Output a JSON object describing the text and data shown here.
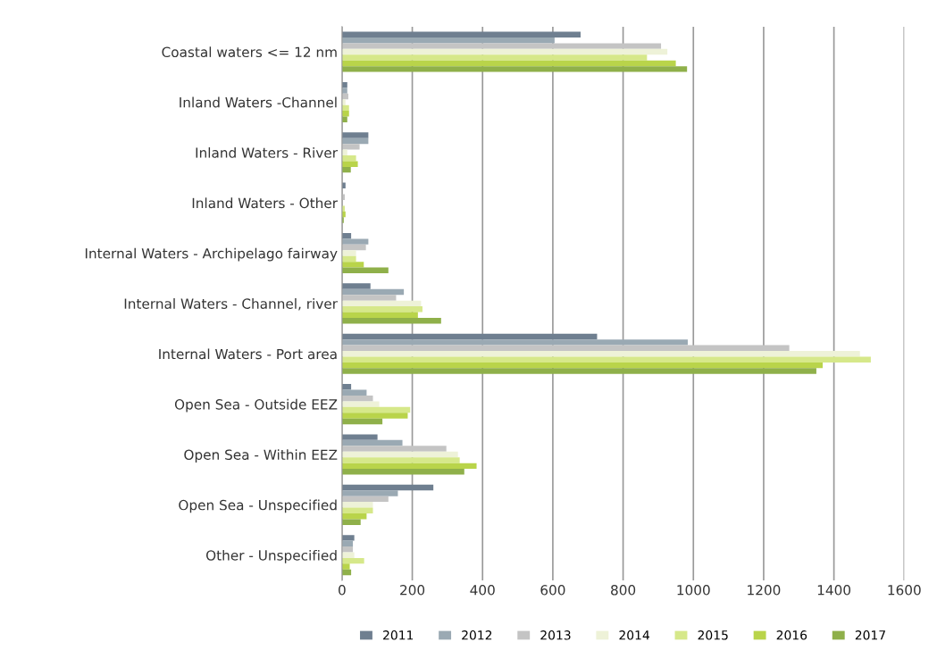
{
  "chart_data": {
    "type": "bar",
    "orientation": "horizontal",
    "categories": [
      "Coastal waters <= 12 nm",
      "Inland Waters -Channel",
      "Inland Waters - River",
      "Inland Waters - Other",
      "Internal Waters - Archipelago fairway",
      "Internal Waters - Channel, river",
      "Internal Waters - Port area",
      "Open Sea - Outside EEZ",
      "Open Sea - Within EEZ",
      "Open Sea - Unspecified",
      "Other - Unspecified"
    ],
    "series": [
      {
        "name": "2011",
        "color": "#6f7f90",
        "values": [
          679,
          15,
          75,
          10,
          26,
          81,
          726,
          26,
          101,
          260,
          35
        ]
      },
      {
        "name": "2012",
        "color": "#9aa9b3",
        "values": [
          605,
          15,
          75,
          null,
          75,
          176,
          984,
          70,
          172,
          159,
          31
        ]
      },
      {
        "name": "2013",
        "color": "#c4c4c4",
        "values": [
          908,
          18,
          50,
          8,
          68,
          154,
          1273,
          88,
          297,
          132,
          31
        ]
      },
      {
        "name": "2014",
        "color": "#eef2d8",
        "values": [
          926,
          10,
          15,
          null,
          40,
          225,
          1474,
          106,
          330,
          88,
          35
        ]
      },
      {
        "name": "2015",
        "color": "#d6e88a",
        "values": [
          868,
          20,
          40,
          8,
          40,
          229,
          1505,
          194,
          335,
          88,
          63
        ]
      },
      {
        "name": "2016",
        "color": "#b9d44a",
        "values": [
          950,
          20,
          45,
          10,
          62,
          216,
          1368,
          187,
          383,
          70,
          22
        ]
      },
      {
        "name": "2017",
        "color": "#8fb04a",
        "values": [
          982,
          15,
          25,
          5,
          132,
          282,
          1350,
          115,
          348,
          53,
          26
        ]
      }
    ],
    "xlim": [
      0,
      1600
    ],
    "xticks": [
      0,
      200,
      400,
      600,
      800,
      1000,
      1200,
      1400,
      1600
    ],
    "grid": "x",
    "legend": "bottom"
  }
}
